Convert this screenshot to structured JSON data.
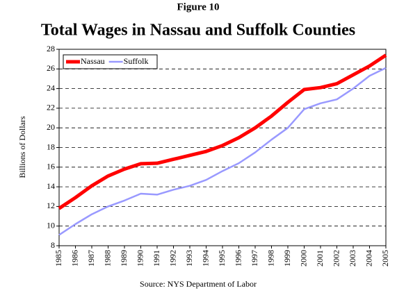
{
  "chart_data": {
    "type": "line",
    "supertitle": "Figure 10",
    "title": "Total Wages in Nassau and Suffolk Counties",
    "y_label": "Billions of Dollars",
    "source": "Source: NYS Department of Labor",
    "categories": [
      "1985",
      "1986",
      "1987",
      "1988",
      "1989",
      "1990",
      "1991",
      "1992",
      "1993",
      "1994",
      "1995",
      "1996",
      "1997",
      "1998",
      "1999",
      "2000",
      "2001",
      "2002",
      "2003",
      "2004",
      "2005"
    ],
    "series": [
      {
        "name": "Nassau",
        "color": "#ff0000",
        "values": [
          11.8,
          12.9,
          14.1,
          15.1,
          15.8,
          16.35,
          16.4,
          16.8,
          17.2,
          17.6,
          18.2,
          19.0,
          20.0,
          21.2,
          22.6,
          23.9,
          24.1,
          24.5,
          25.4,
          26.3,
          27.4
        ]
      },
      {
        "name": "Suffolk",
        "color": "#9999ff",
        "values": [
          9.1,
          10.2,
          11.2,
          12.0,
          12.6,
          13.3,
          13.2,
          13.7,
          14.1,
          14.7,
          15.6,
          16.4,
          17.5,
          18.8,
          20.0,
          21.9,
          22.5,
          22.9,
          24.0,
          25.3,
          26.1
        ]
      }
    ],
    "ylim": [
      8,
      28
    ],
    "yticks": [
      8,
      10,
      12,
      14,
      16,
      18,
      20,
      22,
      24,
      26,
      28
    ],
    "grid": true,
    "legend": "upper left"
  }
}
